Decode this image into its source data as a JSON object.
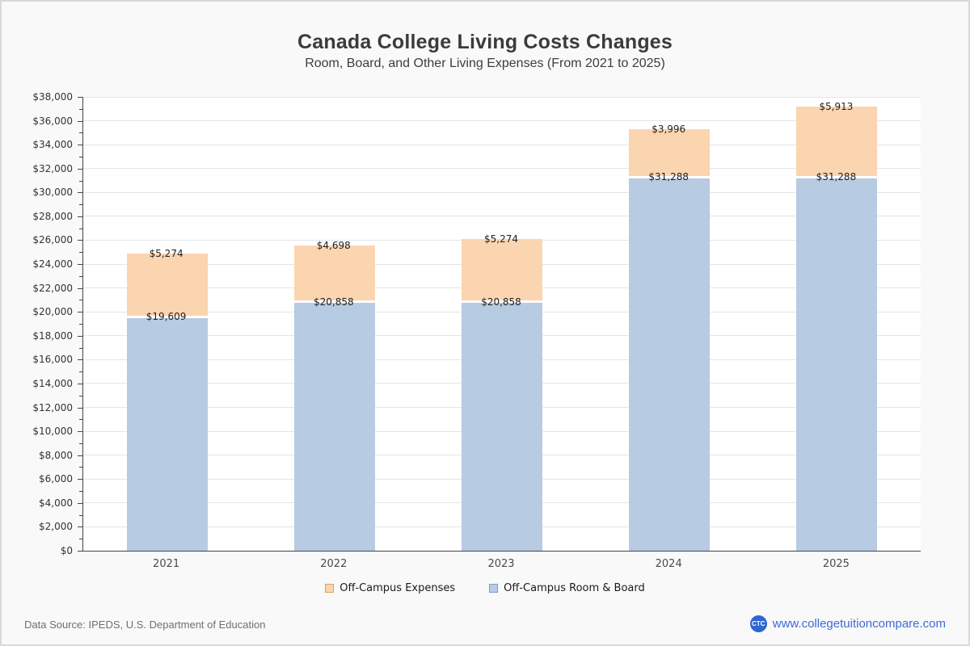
{
  "header": {
    "title": "Canada College Living Costs Changes",
    "subtitle": "Room, Board, and Other Living Expenses (From 2021 to 2025)"
  },
  "chart_data": {
    "type": "bar",
    "stacked": true,
    "categories": [
      "2021",
      "2022",
      "2023",
      "2024",
      "2025"
    ],
    "series": [
      {
        "name": "Off-Campus Room & Board",
        "position": "bottom",
        "color": "#b7cbe2",
        "values": [
          19609,
          20858,
          20858,
          31288,
          31288
        ],
        "labels": [
          "$19,609",
          "$20,858",
          "$20,858",
          "$31,288",
          "$31,288"
        ]
      },
      {
        "name": "Off-Campus Expenses",
        "position": "top",
        "color": "#fbd5b0",
        "values": [
          5274,
          4698,
          5274,
          3996,
          5913
        ],
        "labels": [
          "$5,274",
          "$4,698",
          "$5,274",
          "$3,996",
          "$5,913"
        ]
      }
    ],
    "title": "Canada College Living Costs Changes",
    "subtitle": "Room, Board, and Other Living Expenses (From 2021 to 2025)",
    "xlabel": "",
    "ylabel": "",
    "ylim": [
      0,
      38000
    ],
    "ytick_step": 2000,
    "yminor_step": 1000,
    "ytick_prefix": "$",
    "grid": "horizontal-major",
    "legend_position": "bottom-center"
  },
  "legend": {
    "items": [
      {
        "label": "Off-Campus Expenses",
        "color": "#fbd5b0",
        "border": "#d9a066"
      },
      {
        "label": "Off-Campus Room & Board",
        "color": "#b7cbe2",
        "border": "#7f9dc4"
      }
    ]
  },
  "footer": {
    "source": "Data Source: IPEDS, U.S. Department of Education",
    "logo_text": "CTC",
    "site": "www.collegetuitioncompare.com"
  },
  "colors": {
    "accent_link": "#3e6ad8",
    "logo_bg": "#2d67d2",
    "axis": "#454545",
    "gridline": "#e5e5ea",
    "plot_bg": "#ffffff",
    "page_bg": "#f9f9f9"
  }
}
